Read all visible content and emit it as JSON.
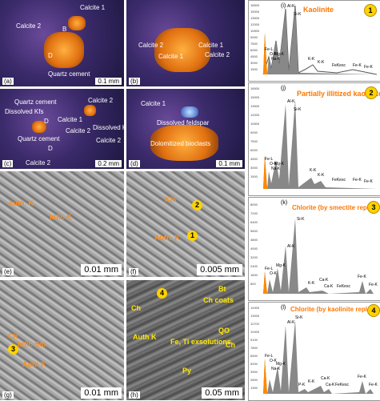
{
  "panels": {
    "a": {
      "label": "(a)",
      "scale": "0.1 mm",
      "annotations": [
        "Calcite 1",
        "Calcite 2",
        "B",
        "D",
        "Quartz cement"
      ]
    },
    "b": {
      "label": "(b)",
      "annotations": [
        "Calcite 2",
        "Calcite 1",
        "Calcite 1",
        "Calcite 2"
      ]
    },
    "c": {
      "label": "(c)",
      "scale": "0.2 mm",
      "annotations": [
        "Quartz cement",
        "Calcite 2",
        "Dissolved Kfs",
        "D",
        "Calcite 1",
        "Calcite 2",
        "Dissolved Kfs",
        "Quartz cement",
        "Calcite 2",
        "D",
        "Calcite 2"
      ]
    },
    "d": {
      "label": "(d)",
      "scale": "0.1 mm",
      "annotations": [
        "Calcite 1",
        "Dissolved feldspar",
        "Dolomitized bioclasts"
      ]
    },
    "e": {
      "label": "(e)",
      "scale": "0.01 mm",
      "annotations": [
        "Auth. K",
        "Infil. K"
      ]
    },
    "f": {
      "label": "(f)",
      "scale": "0.005 mm",
      "annotations": [
        "Kfs",
        "Auth. K"
      ],
      "markers": [
        "2",
        "1"
      ]
    },
    "g": {
      "label": "(g)",
      "scale": "0.01 mm",
      "annotations": [
        "Ch",
        "Infil. Sm",
        "Auth K"
      ],
      "markers": [
        "3"
      ]
    },
    "h": {
      "label": "(h)",
      "scale": "0.05 mm",
      "annotations": [
        "Ch",
        "Bt",
        "Ch coats",
        "QO",
        "Auth K",
        "Fe, Ti exsolutions",
        "Ch",
        "Py"
      ],
      "markers": [
        "4"
      ]
    }
  },
  "spectra": [
    {
      "id": "(i)",
      "title": "Kaolinite",
      "marker": "1",
      "yticks": [
        "16500",
        "15000",
        "13500",
        "12000",
        "10500",
        "9000",
        "7500",
        "6000",
        "4500",
        "3000",
        "1500"
      ],
      "peaks": [
        "Al-K",
        "Si-K",
        "Fe-L",
        "O-K",
        "Mg-K",
        "Na-K",
        "K-K",
        "K-K",
        "FeKesc",
        "Fe-K",
        "Fe-K"
      ]
    },
    {
      "id": "(j)",
      "title": "Partially illitized kaolinite",
      "marker": "2",
      "yticks": [
        "16500",
        "15000",
        "13500",
        "12000",
        "10500",
        "9000",
        "7500",
        "6000",
        "4500",
        "3000",
        "1500"
      ],
      "peaks": [
        "Al-K",
        "Si-K",
        "Fe-L",
        "O-K",
        "Mg-K",
        "Na-K",
        "K-K",
        "K-K",
        "FeKesc",
        "Fe-K",
        "Fe-K"
      ]
    },
    {
      "id": "(k)",
      "title": "Chlorite (by smectite replacement)",
      "marker": "3",
      "yticks": [
        "8000",
        "7200",
        "6400",
        "5600",
        "4800",
        "4000",
        "3200",
        "2400",
        "1600",
        "800"
      ],
      "peaks": [
        "Si-K",
        "Al-K",
        "Fe-L",
        "O-K",
        "Mg-K",
        "Ca-K",
        "K-K",
        "Ca-K",
        "FeKesc",
        "Fe-K",
        "Fe-K"
      ]
    },
    {
      "id": "(l)",
      "title": "Chlorite (by kaolinite replacement)",
      "marker": "4",
      "yticks": [
        "14300",
        "13000",
        "11700",
        "10400",
        "9100",
        "7800",
        "6500",
        "5200",
        "3900",
        "2600",
        "1300"
      ],
      "peaks": [
        "Si-K",
        "Al-K",
        "Fe-L",
        "O-K",
        "Mg-K",
        "Na-K",
        "P-K",
        "K-K",
        "Ca-K",
        "Ca-K",
        "FeKesc",
        "Fe-K",
        "Fe-K"
      ]
    }
  ]
}
